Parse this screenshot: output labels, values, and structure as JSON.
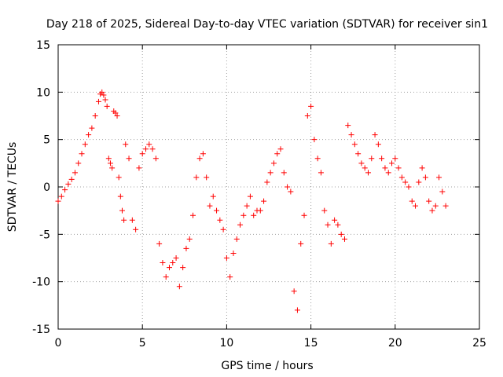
{
  "chart_data": {
    "type": "scatter",
    "title": "Day 218 of 2025, Sidereal Day-to-day VTEC variation (SDTVAR) for receiver sin1",
    "xlabel": "GPS time / hours",
    "ylabel": "SDTVAR / TECUs",
    "xlim": [
      0,
      25
    ],
    "ylim": [
      -15,
      15
    ],
    "xticks": [
      0,
      5,
      10,
      15,
      20,
      25
    ],
    "yticks": [
      -15,
      -10,
      -5,
      0,
      5,
      10,
      15
    ],
    "grid": true,
    "marker": "+",
    "color": "#ff0000",
    "series": [
      {
        "name": "sin1",
        "x": [
          0.0,
          0.2,
          0.4,
          0.6,
          0.8,
          1.0,
          1.2,
          1.4,
          1.6,
          1.8,
          2.0,
          2.2,
          2.4,
          2.5,
          2.6,
          2.7,
          2.8,
          2.9,
          3.0,
          3.1,
          3.2,
          3.3,
          3.4,
          3.5,
          3.6,
          3.7,
          3.8,
          3.9,
          4.0,
          4.2,
          4.4,
          4.6,
          4.8,
          5.0,
          5.2,
          5.4,
          5.6,
          5.8,
          6.0,
          6.2,
          6.4,
          6.6,
          6.8,
          7.0,
          7.2,
          7.4,
          7.6,
          7.8,
          8.0,
          8.2,
          8.4,
          8.6,
          8.8,
          9.0,
          9.2,
          9.4,
          9.6,
          9.8,
          10.0,
          10.2,
          10.4,
          10.6,
          10.8,
          11.0,
          11.2,
          11.4,
          11.6,
          11.8,
          12.0,
          12.2,
          12.4,
          12.6,
          12.8,
          13.0,
          13.2,
          13.4,
          13.6,
          13.8,
          14.0,
          14.2,
          14.4,
          14.6,
          14.8,
          15.0,
          15.2,
          15.4,
          15.6,
          15.8,
          16.0,
          16.2,
          16.4,
          16.6,
          16.8,
          17.0,
          17.2,
          17.4,
          17.6,
          17.8,
          18.0,
          18.2,
          18.4,
          18.6,
          18.8,
          19.0,
          19.2,
          19.4,
          19.6,
          19.8,
          20.0,
          20.2,
          20.4,
          20.6,
          20.8,
          21.0,
          21.2,
          21.4,
          21.6,
          21.8,
          22.0,
          22.2,
          22.4,
          22.6,
          22.8,
          23.0
        ],
        "y": [
          -1.5,
          -1.0,
          -0.3,
          0.3,
          0.8,
          1.5,
          2.5,
          3.5,
          4.5,
          5.5,
          6.2,
          7.5,
          9.0,
          9.8,
          10.0,
          9.7,
          9.2,
          8.5,
          3.0,
          2.5,
          2.0,
          8.0,
          7.8,
          7.5,
          1.0,
          -1.0,
          -2.5,
          -3.5,
          4.5,
          3.0,
          -3.5,
          -4.5,
          2.0,
          3.5,
          4.0,
          4.5,
          4.0,
          3.0,
          -6.0,
          -8.0,
          -9.5,
          -8.5,
          -8.0,
          -7.5,
          -10.5,
          -8.5,
          -6.5,
          -5.5,
          -3.0,
          1.0,
          3.0,
          3.5,
          1.0,
          -2.0,
          -1.0,
          -2.5,
          -3.5,
          -4.5,
          -7.5,
          -9.5,
          -7.0,
          -5.5,
          -4.0,
          -3.0,
          -2.0,
          -1.0,
          -3.0,
          -2.5,
          -2.5,
          -1.5,
          0.5,
          1.5,
          2.5,
          3.5,
          4.0,
          1.5,
          0.0,
          -0.5,
          -11.0,
          -13.0,
          -6.0,
          -3.0,
          7.5,
          8.5,
          5.0,
          3.0,
          1.5,
          -2.5,
          -4.0,
          -6.0,
          -3.5,
          -4.0,
          -5.0,
          -5.5,
          6.5,
          5.5,
          4.5,
          3.5,
          2.5,
          2.0,
          1.5,
          3.0,
          5.5,
          4.5,
          3.0,
          2.0,
          1.5,
          2.5,
          3.0,
          2.0,
          1.0,
          0.5,
          0.0,
          -1.5,
          -2.0,
          0.5,
          2.0,
          1.0,
          -1.5,
          -2.5,
          -2.0,
          1.0,
          -0.5,
          -2.0
        ]
      }
    ]
  }
}
